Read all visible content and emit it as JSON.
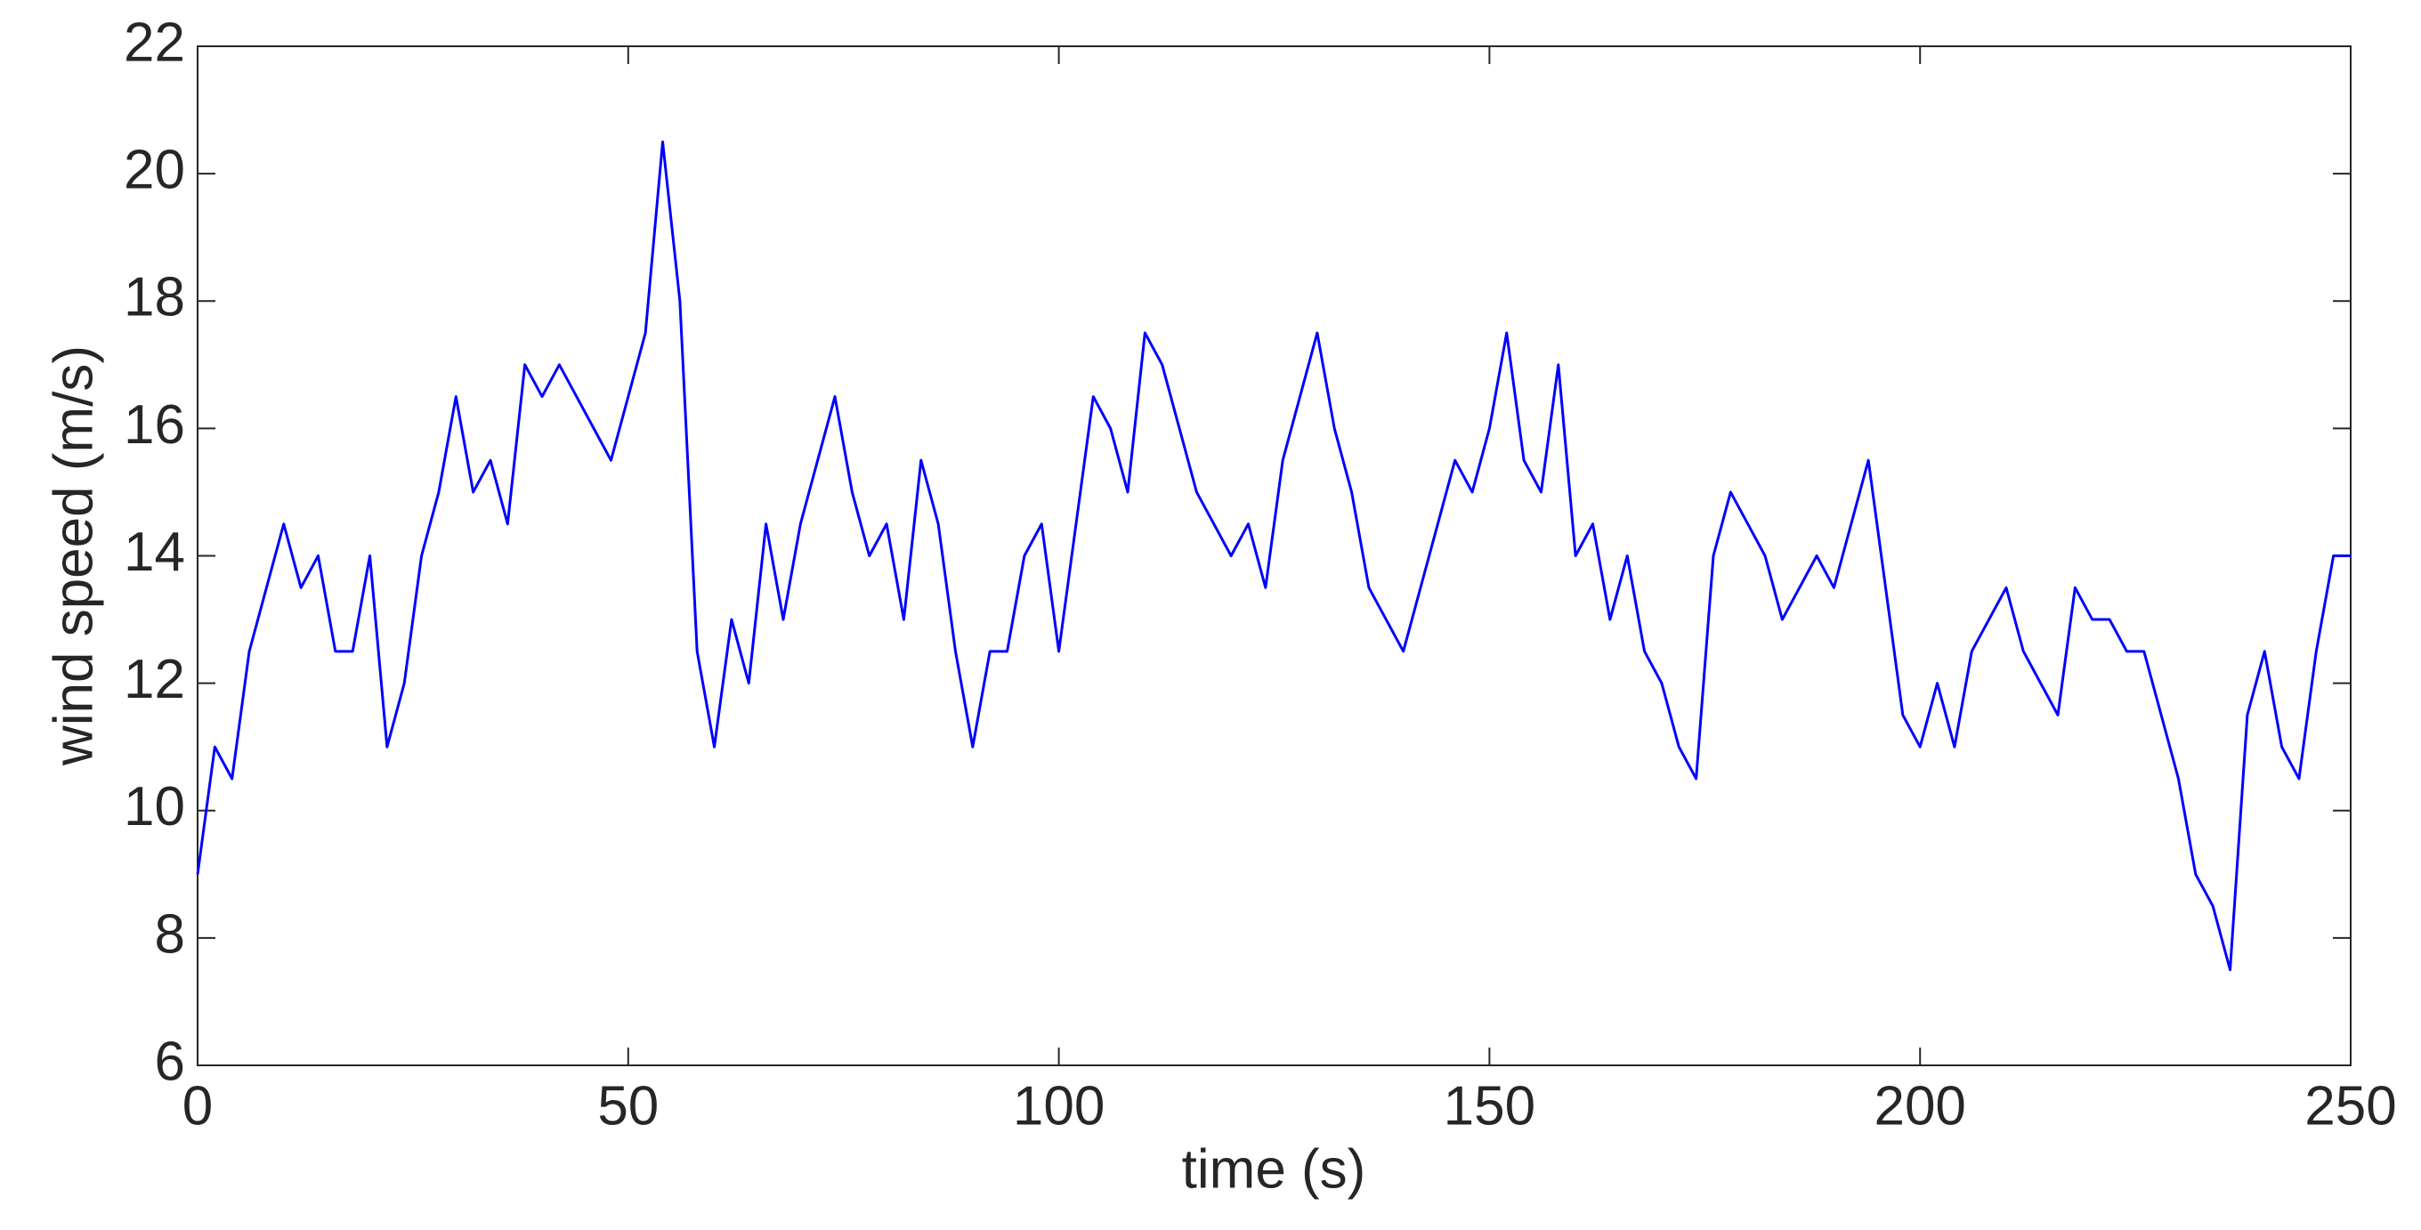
{
  "chart_data": {
    "type": "line",
    "xlabel": "time (s)",
    "ylabel": "wind speed (m/s)",
    "x": [
      0,
      2,
      4,
      6,
      8,
      10,
      12,
      14,
      16,
      18,
      20,
      22,
      24,
      26,
      28,
      30,
      32,
      34,
      36,
      38,
      40,
      42,
      44,
      46,
      48,
      50,
      52,
      54,
      56,
      58,
      60,
      62,
      64,
      66,
      68,
      70,
      72,
      74,
      76,
      78,
      80,
      82,
      84,
      86,
      88,
      90,
      92,
      94,
      96,
      98,
      100,
      102,
      104,
      106,
      108,
      110,
      112,
      114,
      116,
      118,
      120,
      122,
      124,
      126,
      128,
      130,
      132,
      134,
      136,
      138,
      140,
      142,
      144,
      146,
      148,
      150,
      152,
      154,
      156,
      158,
      160,
      162,
      164,
      166,
      168,
      170,
      172,
      174,
      176,
      178,
      180,
      182,
      184,
      186,
      188,
      190,
      192,
      194,
      196,
      198,
      200,
      202,
      204,
      206,
      208,
      210,
      212,
      214,
      216,
      218,
      220,
      222,
      224,
      226,
      228,
      230,
      232,
      234,
      236,
      238,
      240,
      242,
      244,
      246,
      248,
      250
    ],
    "values": [
      9,
      11,
      10.5,
      12.5,
      13.5,
      14.5,
      13.5,
      14,
      12.5,
      12.5,
      14,
      11,
      12,
      14,
      15,
      16.5,
      15,
      15.5,
      14.5,
      17,
      16.5,
      17,
      16.5,
      16,
      15.5,
      16.5,
      17.5,
      20.5,
      18,
      12.5,
      11,
      13,
      12,
      14.5,
      13,
      14.5,
      15.5,
      16.5,
      15,
      14,
      14.5,
      13,
      15.5,
      14.5,
      12.5,
      11,
      12.5,
      12.5,
      14,
      14.5,
      12.5,
      14.5,
      16.5,
      16,
      15,
      17.5,
      17,
      16,
      15,
      14.5,
      14,
      14.5,
      13.5,
      15.5,
      16.5,
      17.5,
      16,
      15,
      13.5,
      13,
      12.5,
      13.5,
      14.5,
      15.5,
      15,
      16,
      17.5,
      15.5,
      15,
      17,
      14,
      14.5,
      13,
      14,
      12.5,
      12,
      11,
      10.5,
      14,
      15,
      14.5,
      14,
      13,
      13.5,
      14,
      13.5,
      14.5,
      15.5,
      13.5,
      11.5,
      11,
      12,
      11,
      12.5,
      13,
      13.5,
      12.5,
      12,
      11.5,
      13.5,
      13,
      13,
      12.5,
      12.5,
      11.5,
      10.5,
      9,
      8.5,
      7.5,
      11.5,
      12.5,
      11,
      10.5,
      12.5,
      14,
      14
    ],
    "color": "#0000ff",
    "xlim": [
      0,
      250
    ],
    "xticks": [
      0,
      50,
      100,
      150,
      200,
      250
    ],
    "ylim": [
      6,
      22
    ],
    "yticks": [
      6,
      8,
      10,
      12,
      14,
      16,
      18,
      20,
      22
    ],
    "grid": false
  }
}
